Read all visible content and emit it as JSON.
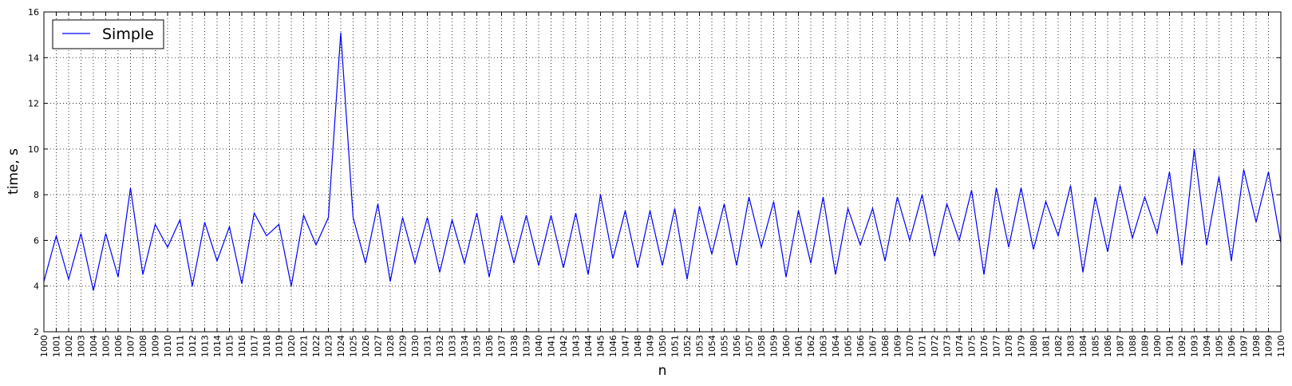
{
  "chart_data": {
    "type": "line",
    "title": "",
    "xlabel": "n",
    "ylabel": "time, s",
    "xlim": [
      1000,
      1100
    ],
    "ylim": [
      2,
      16
    ],
    "yticks": [
      2,
      4,
      6,
      8,
      10,
      12,
      14,
      16
    ],
    "grid": true,
    "legend_position": "top-left",
    "series": [
      {
        "name": "Simple",
        "color": "#0000ff",
        "x": [
          1000,
          1001,
          1002,
          1003,
          1004,
          1005,
          1006,
          1007,
          1008,
          1009,
          1010,
          1011,
          1012,
          1013,
          1014,
          1015,
          1016,
          1017,
          1018,
          1019,
          1020,
          1021,
          1022,
          1023,
          1024,
          1025,
          1026,
          1027,
          1028,
          1029,
          1030,
          1031,
          1032,
          1033,
          1034,
          1035,
          1036,
          1037,
          1038,
          1039,
          1040,
          1041,
          1042,
          1043,
          1044,
          1045,
          1046,
          1047,
          1048,
          1049,
          1050,
          1051,
          1052,
          1053,
          1054,
          1055,
          1056,
          1057,
          1058,
          1059,
          1060,
          1061,
          1062,
          1063,
          1064,
          1065,
          1066,
          1067,
          1068,
          1069,
          1070,
          1071,
          1072,
          1073,
          1074,
          1075,
          1076,
          1077,
          1078,
          1079,
          1080,
          1081,
          1082,
          1083,
          1084,
          1085,
          1086,
          1087,
          1088,
          1089,
          1090,
          1091,
          1092,
          1093,
          1094,
          1095,
          1096,
          1097,
          1098,
          1099,
          1100
        ],
        "values": [
          4.2,
          6.2,
          4.3,
          6.3,
          3.8,
          6.3,
          4.4,
          8.3,
          4.5,
          6.7,
          5.7,
          6.9,
          4.0,
          6.8,
          5.1,
          6.6,
          4.1,
          7.2,
          6.2,
          6.7,
          4.0,
          7.1,
          5.8,
          7.0,
          15.1,
          7.0,
          5.0,
          7.6,
          4.2,
          7.0,
          5.0,
          7.0,
          4.6,
          6.9,
          5.0,
          7.2,
          4.4,
          7.1,
          5.0,
          7.1,
          4.9,
          7.1,
          4.8,
          7.2,
          4.5,
          8.0,
          5.2,
          7.3,
          4.8,
          7.3,
          4.9,
          7.4,
          4.3,
          7.5,
          5.4,
          7.6,
          4.9,
          7.9,
          5.7,
          7.7,
          4.4,
          7.3,
          5.0,
          7.9,
          4.5,
          7.4,
          5.8,
          7.4,
          5.1,
          7.9,
          6.0,
          8.0,
          5.3,
          7.6,
          6.0,
          8.2,
          4.5,
          8.3,
          5.7,
          8.3,
          5.6,
          7.7,
          6.2,
          8.4,
          4.6,
          7.9,
          5.5,
          8.4,
          6.1,
          7.9,
          6.3,
          9.0,
          4.9,
          10.0,
          5.8,
          8.8,
          5.1,
          9.1,
          6.8,
          9.0,
          5.9
        ]
      }
    ]
  }
}
